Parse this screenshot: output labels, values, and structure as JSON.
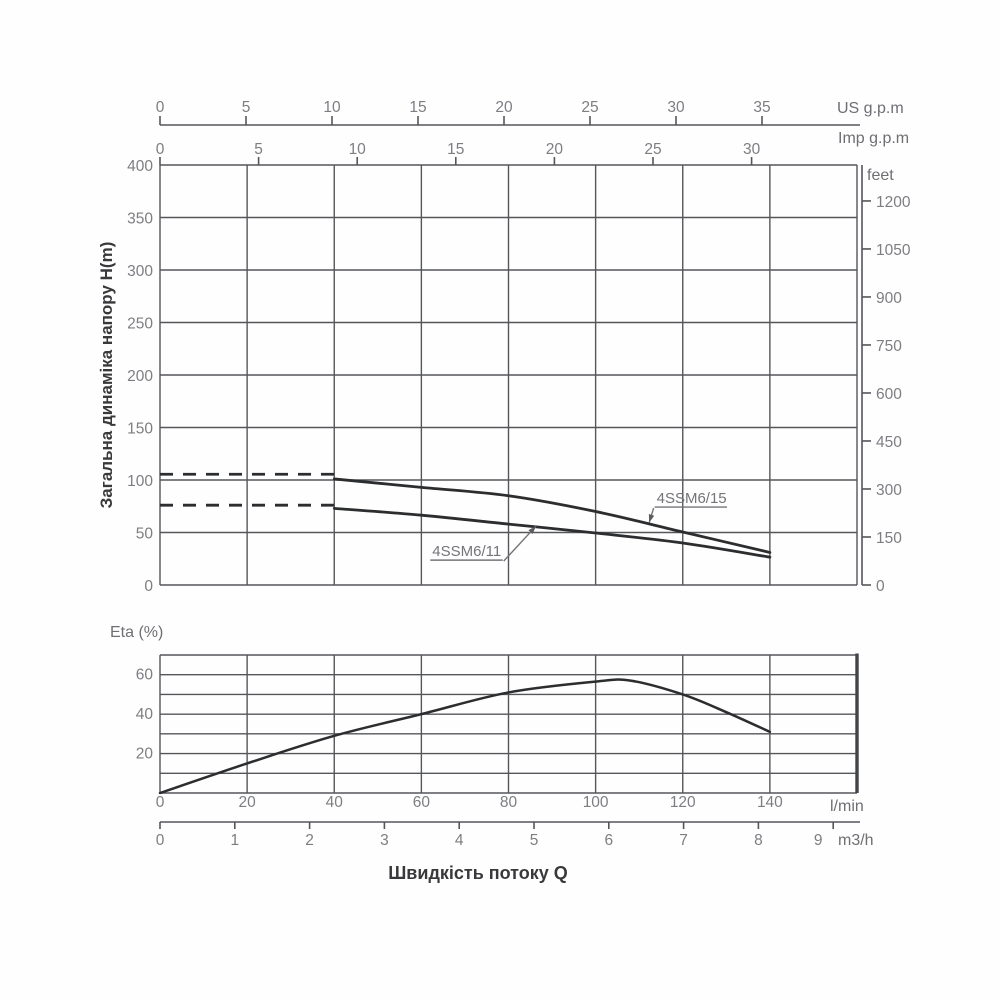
{
  "styles": {
    "background": "#fefefe",
    "grid_color": "#55565a",
    "curve_color": "#2c2d2f",
    "tick_label_color": "#7d7e82",
    "unit_label_color": "#6e6f73",
    "title_color": "#39393c"
  },
  "chart_data": [
    {
      "id": "head_chart",
      "type": "line",
      "ylabel": "Загальна динаміка напору H(m)",
      "y_left": {
        "unit": "H(m)",
        "min": 0,
        "max": 400,
        "step": 50,
        "ticks": [
          400,
          350,
          300,
          250,
          200,
          150,
          100,
          50,
          0
        ]
      },
      "y_right": {
        "label": "feet",
        "ticks": [
          1200,
          1050,
          900,
          750,
          600,
          450,
          300,
          150,
          0
        ]
      },
      "x_us": {
        "label": "US g.p.m",
        "ticks": [
          0,
          5,
          10,
          15,
          20,
          25,
          30,
          35
        ]
      },
      "x_imp": {
        "label": "Imp g.p.m",
        "ticks": [
          0,
          5,
          10,
          15,
          20,
          25,
          30
        ]
      },
      "x_lmin_range": [
        0,
        160
      ],
      "x_grid_step_lmin": 20,
      "grid": true,
      "series": [
        {
          "name": "4SSM6/15",
          "points_lmin_m": [
            [
              40,
              101
            ],
            [
              60,
              93
            ],
            [
              80,
              85
            ],
            [
              100,
              70
            ],
            [
              120,
              50.5
            ],
            [
              140,
              31
            ]
          ],
          "dash_lead": {
            "from_lmin": 0,
            "to_lmin": 40,
            "h_m": 105.5
          }
        },
        {
          "name": "4SSM6/11",
          "points_lmin_m": [
            [
              40,
              73
            ],
            [
              60,
              66.5
            ],
            [
              80,
              58
            ],
            [
              100,
              49.5
            ],
            [
              120,
              40
            ],
            [
              140,
              26.5
            ]
          ],
          "dash_lead": {
            "from_lmin": 0,
            "to_lmin": 40,
            "h_m": 76
          }
        }
      ],
      "annotations": [
        {
          "text": "4SSM6/15",
          "label_q": 114,
          "label_h": 78,
          "target_q": 112.3,
          "target_h": 59.5,
          "leader": "start",
          "arrow": true
        },
        {
          "text": "4SSM6/11",
          "label_q": 62.5,
          "label_h": 27.5,
          "target_q": 86.3,
          "target_h": 56,
          "leader": "end",
          "arrow": true
        }
      ]
    },
    {
      "id": "efficiency_chart",
      "type": "line",
      "ylabel": "Eta (%)",
      "xlabel": "Швидкість потоку Q",
      "y": {
        "min": 0,
        "max": 70,
        "grid_step": 10,
        "tick_labels": [
          60,
          40,
          20
        ]
      },
      "x_lmin": {
        "label": "l/min",
        "ticks": [
          0,
          20,
          40,
          60,
          80,
          100,
          120,
          140
        ]
      },
      "x_m3h": {
        "label": "m3/h",
        "ticks": [
          0,
          1,
          2,
          3,
          4,
          5,
          6,
          7,
          8,
          9
        ]
      },
      "series": [
        {
          "name": "Eta",
          "points_lmin_pct": [
            [
              0,
              0
            ],
            [
              20,
              15
            ],
            [
              40,
              29
            ],
            [
              60,
              40
            ],
            [
              80,
              51
            ],
            [
              100,
              56.5
            ],
            [
              108,
              57
            ],
            [
              120,
              50
            ],
            [
              130,
              41
            ],
            [
              140,
              31
            ]
          ]
        }
      ]
    }
  ]
}
